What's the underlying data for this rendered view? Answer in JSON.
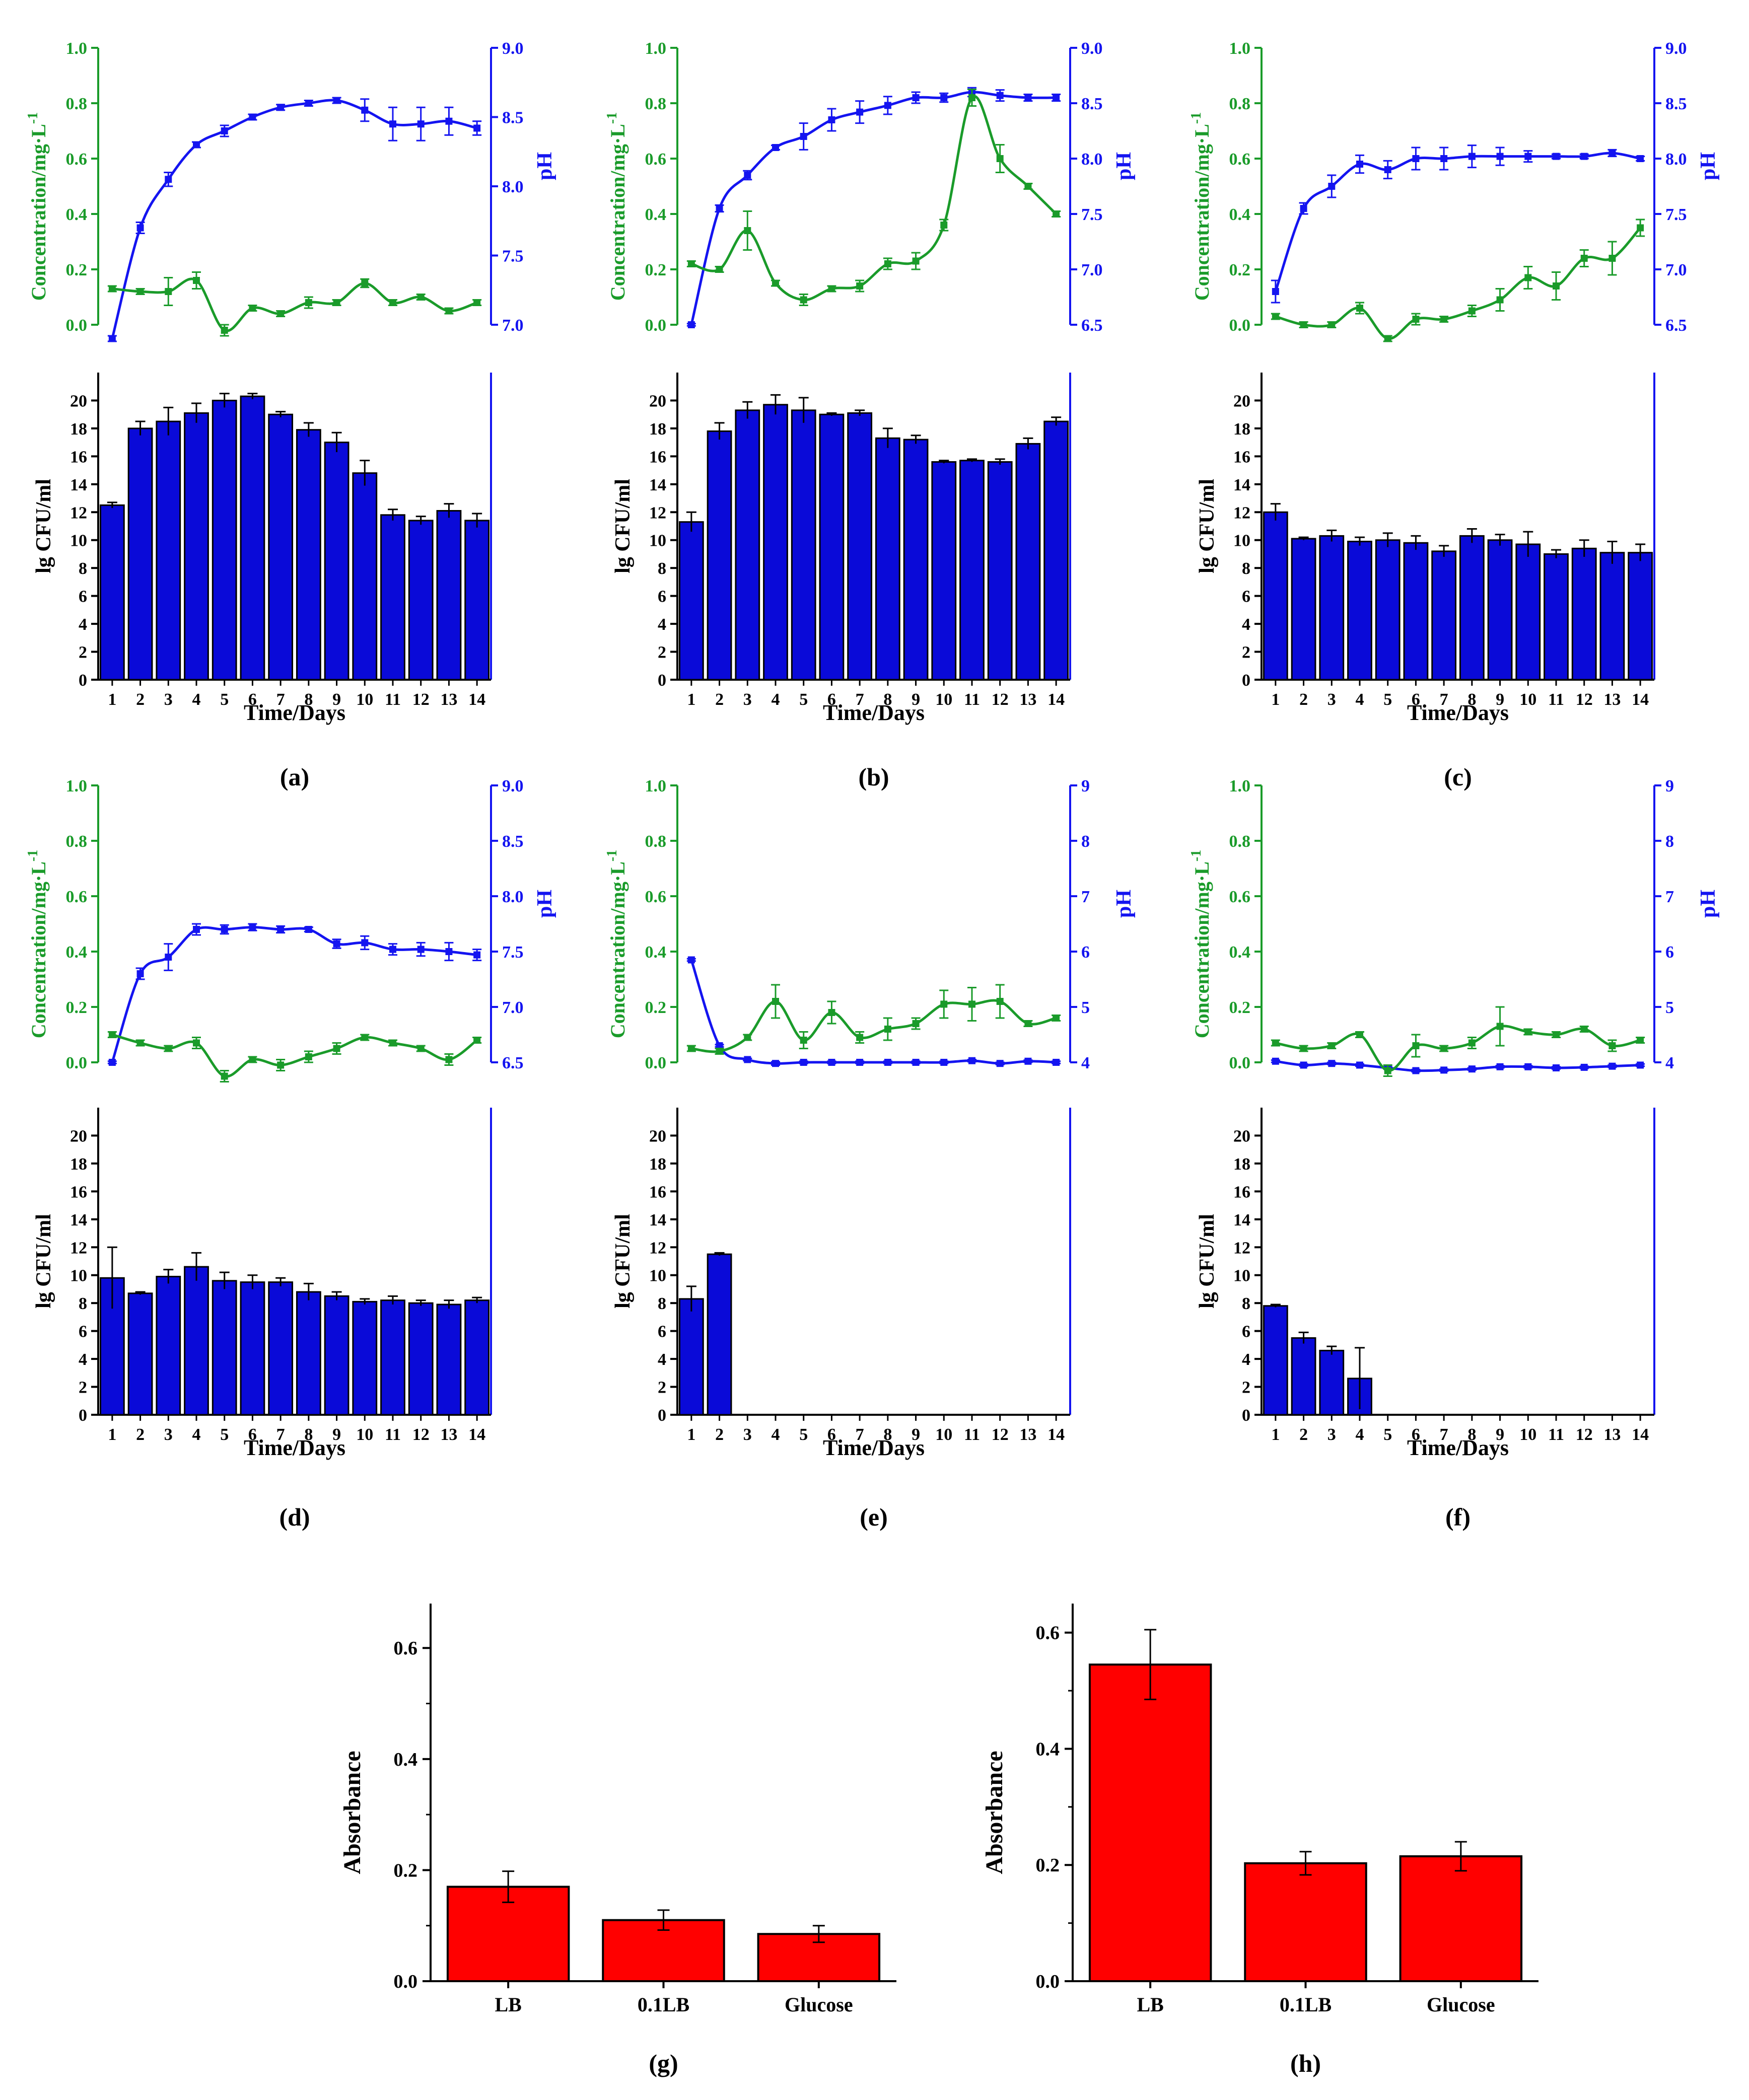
{
  "colors": {
    "concentration": "#1a9b2a",
    "ph": "#1414f0",
    "bar_blue": "#0a0ad8",
    "bar_red": "#ff0000",
    "axis": "#000000"
  },
  "chart_data": [
    {
      "id": "a",
      "type": "combo",
      "label": "(a)",
      "days": [
        1,
        2,
        3,
        4,
        5,
        6,
        7,
        8,
        9,
        10,
        11,
        12,
        13,
        14
      ],
      "concentration": {
        "ylabel": "Concentration/mg·L",
        "ylabel_sup": "-1",
        "ylim": [
          0,
          1
        ],
        "ticks": [
          "0.0",
          "0.2",
          "0.4",
          "0.6",
          "0.8",
          "1.0"
        ],
        "values": [
          0.13,
          0.12,
          0.12,
          0.16,
          -0.02,
          0.06,
          0.04,
          0.08,
          0.08,
          0.15,
          0.08,
          0.1,
          0.05,
          0.08
        ],
        "errors": [
          0.01,
          0.01,
          0.05,
          0.03,
          0.02,
          0.01,
          0.01,
          0.02,
          0.01,
          0.015,
          0.01,
          0.01,
          0.01,
          0.01
        ]
      },
      "ph": {
        "ylabel": "pH",
        "ylim": [
          7.0,
          9.0
        ],
        "ticks": [
          "7.0",
          "7.5",
          "8.0",
          "8.5",
          "9.0"
        ],
        "values": [
          6.9,
          7.7,
          8.05,
          8.3,
          8.4,
          8.5,
          8.57,
          8.6,
          8.62,
          8.55,
          8.45,
          8.45,
          8.47,
          8.42
        ],
        "errors": [
          0.02,
          0.04,
          0.05,
          0.02,
          0.04,
          0.02,
          0.02,
          0.02,
          0.02,
          0.08,
          0.12,
          0.12,
          0.1,
          0.05
        ]
      },
      "cfu": {
        "ylabel": "lg CFU/ml",
        "xlabel": "Time/Days",
        "ylim": [
          0,
          22
        ],
        "ticks": [
          "0",
          "2",
          "4",
          "6",
          "8",
          "10",
          "12",
          "14",
          "16",
          "18",
          "20"
        ],
        "values": [
          12.5,
          18,
          18.5,
          19.1,
          20.0,
          20.3,
          19.0,
          17.9,
          17.0,
          14.8,
          11.8,
          11.4,
          12.1,
          11.4
        ],
        "errors": [
          0.2,
          0.5,
          1.0,
          0.7,
          0.5,
          0.2,
          0.2,
          0.5,
          0.7,
          0.9,
          0.4,
          0.3,
          0.5,
          0.5
        ]
      }
    },
    {
      "id": "b",
      "type": "combo",
      "label": "(b)",
      "days": [
        1,
        2,
        3,
        4,
        5,
        6,
        7,
        8,
        9,
        10,
        11,
        12,
        13,
        14
      ],
      "concentration": {
        "ylabel": "Concentration/mg·L",
        "ylabel_sup": "-1",
        "ylim": [
          0,
          1
        ],
        "ticks": [
          "0.0",
          "0.2",
          "0.4",
          "0.6",
          "0.8",
          "1.0"
        ],
        "values": [
          0.22,
          0.2,
          0.34,
          0.15,
          0.09,
          0.13,
          0.14,
          0.22,
          0.23,
          0.36,
          0.82,
          0.6,
          0.5,
          0.4
        ],
        "errors": [
          0.01,
          0.01,
          0.07,
          0.01,
          0.02,
          0.01,
          0.02,
          0.02,
          0.03,
          0.02,
          0.03,
          0.05,
          0.01,
          0.01
        ]
      },
      "ph": {
        "ylabel": "pH",
        "ylim": [
          6.5,
          9.0
        ],
        "ticks": [
          "6.5",
          "7.0",
          "7.5",
          "8.0",
          "8.5",
          "9.0"
        ],
        "values": [
          6.5,
          7.55,
          7.85,
          8.1,
          8.2,
          8.35,
          8.42,
          8.48,
          8.55,
          8.55,
          8.6,
          8.57,
          8.55,
          8.55
        ],
        "errors": [
          0.01,
          0.03,
          0.04,
          0.02,
          0.12,
          0.1,
          0.1,
          0.08,
          0.05,
          0.04,
          0.04,
          0.05,
          0.03,
          0.03
        ]
      },
      "cfu": {
        "ylabel": "lg CFU/ml",
        "xlabel": "Time/Days",
        "ylim": [
          0,
          22
        ],
        "ticks": [
          "0",
          "2",
          "4",
          "6",
          "8",
          "10",
          "12",
          "14",
          "16",
          "18",
          "20"
        ],
        "values": [
          11.3,
          17.8,
          19.3,
          19.7,
          19.3,
          19.0,
          19.1,
          17.3,
          17.2,
          15.6,
          15.7,
          15.6,
          16.9,
          18.5
        ],
        "errors": [
          0.7,
          0.6,
          0.6,
          0.7,
          0.9,
          0.1,
          0.2,
          0.7,
          0.3,
          0.1,
          0.1,
          0.2,
          0.4,
          0.3
        ]
      }
    },
    {
      "id": "c",
      "type": "combo",
      "label": "(c)",
      "days": [
        1,
        2,
        3,
        4,
        5,
        6,
        7,
        8,
        9,
        10,
        11,
        12,
        13,
        14
      ],
      "concentration": {
        "ylabel": "Concentration/mg·L",
        "ylabel_sup": "-1",
        "ylim": [
          0,
          1
        ],
        "ticks": [
          "0.0",
          "0.2",
          "0.4",
          "0.6",
          "0.8",
          "1.0"
        ],
        "values": [
          0.03,
          0.0,
          0.0,
          0.06,
          -0.05,
          0.02,
          0.02,
          0.05,
          0.09,
          0.17,
          0.14,
          0.24,
          0.24,
          0.35
        ],
        "errors": [
          0.01,
          0.01,
          0.01,
          0.02,
          0.01,
          0.02,
          0.01,
          0.02,
          0.04,
          0.04,
          0.05,
          0.03,
          0.06,
          0.03
        ]
      },
      "ph": {
        "ylabel": "pH",
        "ylim": [
          6.5,
          9.0
        ],
        "ticks": [
          "6.5",
          "7.0",
          "7.5",
          "8.0",
          "8.5",
          "9.0"
        ],
        "values": [
          6.8,
          7.55,
          7.75,
          7.95,
          7.9,
          8.0,
          8.0,
          8.02,
          8.02,
          8.02,
          8.02,
          8.02,
          8.05,
          8.0
        ],
        "errors": [
          0.1,
          0.05,
          0.1,
          0.08,
          0.08,
          0.1,
          0.1,
          0.1,
          0.08,
          0.05,
          0.02,
          0.02,
          0.03,
          0.02
        ]
      },
      "cfu": {
        "ylabel": "lg CFU/ml",
        "xlabel": "Time/Days",
        "ylim": [
          0,
          22
        ],
        "ticks": [
          "0",
          "2",
          "4",
          "6",
          "8",
          "10",
          "12",
          "14",
          "16",
          "18",
          "20"
        ],
        "values": [
          12.0,
          10.1,
          10.3,
          9.9,
          10.0,
          9.8,
          9.2,
          10.3,
          10.0,
          9.7,
          9.0,
          9.4,
          9.1,
          9.1
        ],
        "errors": [
          0.6,
          0.1,
          0.4,
          0.3,
          0.5,
          0.5,
          0.4,
          0.5,
          0.4,
          0.9,
          0.3,
          0.6,
          0.8,
          0.6
        ]
      }
    },
    {
      "id": "d",
      "type": "combo",
      "label": "(d)",
      "days": [
        1,
        2,
        3,
        4,
        5,
        6,
        7,
        8,
        9,
        10,
        11,
        12,
        13,
        14
      ],
      "concentration": {
        "ylabel": "Concentration/mg·L",
        "ylabel_sup": "-1",
        "ylim": [
          0,
          1
        ],
        "ticks": [
          "0.0",
          "0.2",
          "0.4",
          "0.6",
          "0.8",
          "1.0"
        ],
        "values": [
          0.1,
          0.07,
          0.05,
          0.07,
          -0.05,
          0.01,
          -0.01,
          0.02,
          0.05,
          0.09,
          0.07,
          0.05,
          0.01,
          0.08
        ],
        "errors": [
          0.01,
          0.01,
          0.01,
          0.02,
          0.02,
          0.01,
          0.02,
          0.02,
          0.02,
          0.01,
          0.01,
          0.01,
          0.02,
          0.01
        ]
      },
      "ph": {
        "ylabel": "pH",
        "ylim": [
          6.5,
          9.0
        ],
        "ticks": [
          "6.5",
          "7.0",
          "7.5",
          "8.0",
          "8.5",
          "9.0"
        ],
        "values": [
          6.5,
          7.3,
          7.45,
          7.7,
          7.7,
          7.72,
          7.7,
          7.7,
          7.57,
          7.58,
          7.52,
          7.52,
          7.5,
          7.47
        ],
        "errors": [
          0.01,
          0.05,
          0.12,
          0.05,
          0.04,
          0.03,
          0.03,
          0.02,
          0.04,
          0.06,
          0.05,
          0.06,
          0.08,
          0.05
        ]
      },
      "cfu": {
        "ylabel": "lg CFU/ml",
        "xlabel": "Time/Days",
        "ylim": [
          0,
          22
        ],
        "ticks": [
          "0",
          "2",
          "4",
          "6",
          "8",
          "10",
          "12",
          "14",
          "16",
          "18",
          "20"
        ],
        "values": [
          9.8,
          8.7,
          9.9,
          10.6,
          9.6,
          9.5,
          9.5,
          8.8,
          8.5,
          8.1,
          8.2,
          8.0,
          7.9,
          8.2
        ],
        "errors": [
          2.2,
          0.1,
          0.5,
          1.0,
          0.6,
          0.5,
          0.3,
          0.6,
          0.3,
          0.2,
          0.3,
          0.2,
          0.3,
          0.2
        ]
      }
    },
    {
      "id": "e",
      "type": "combo",
      "label": "(e)",
      "days": [
        1,
        2,
        3,
        4,
        5,
        6,
        7,
        8,
        9,
        10,
        11,
        12,
        13,
        14
      ],
      "concentration": {
        "ylabel": "Concentration/mg·L",
        "ylabel_sup": "-1",
        "ylim": [
          0,
          1
        ],
        "ticks": [
          "0.0",
          "0.2",
          "0.4",
          "0.6",
          "0.8",
          "1.0"
        ],
        "values": [
          0.05,
          0.04,
          0.09,
          0.22,
          0.08,
          0.18,
          0.09,
          0.12,
          0.14,
          0.21,
          0.21,
          0.22,
          0.14,
          0.16
        ],
        "errors": [
          0.01,
          0.01,
          0.01,
          0.06,
          0.03,
          0.04,
          0.02,
          0.04,
          0.02,
          0.05,
          0.06,
          0.06,
          0.01,
          0.01
        ]
      },
      "ph": {
        "ylabel": "pH",
        "ylim": [
          4,
          9
        ],
        "ticks": [
          "4",
          "5",
          "6",
          "7",
          "8",
          "9"
        ],
        "values": [
          5.85,
          4.3,
          4.05,
          3.98,
          4.0,
          4.0,
          4.0,
          4.0,
          4.0,
          4.0,
          4.03,
          3.98,
          4.02,
          4.0
        ],
        "errors": [
          0.02,
          0.02,
          0.02,
          0.03,
          0.02,
          0.02,
          0.02,
          0.02,
          0.02,
          0.02,
          0.02,
          0.02,
          0.02,
          0.02
        ]
      },
      "cfu": {
        "ylabel": "lg CFU/ml",
        "xlabel": "Time/Days",
        "ylim": [
          0,
          22
        ],
        "ticks": [
          "0",
          "2",
          "4",
          "6",
          "8",
          "10",
          "12",
          "14",
          "16",
          "18",
          "20"
        ],
        "values": [
          8.3,
          11.5,
          0,
          0,
          0,
          0,
          0,
          0,
          0,
          0,
          0,
          0,
          0,
          0
        ],
        "errors": [
          0.9,
          0.1,
          0,
          0,
          0,
          0,
          0,
          0,
          0,
          0,
          0,
          0,
          0,
          0
        ]
      }
    },
    {
      "id": "f",
      "type": "combo",
      "label": "(f)",
      "days": [
        1,
        2,
        3,
        4,
        5,
        6,
        7,
        8,
        9,
        10,
        11,
        12,
        13,
        14
      ],
      "concentration": {
        "ylabel": "Concentration/mg·L",
        "ylabel_sup": "-1",
        "ylim": [
          0,
          1
        ],
        "ticks": [
          "0.0",
          "0.2",
          "0.4",
          "0.6",
          "0.8",
          "1.0"
        ],
        "values": [
          0.07,
          0.05,
          0.06,
          0.1,
          -0.03,
          0.06,
          0.05,
          0.07,
          0.13,
          0.11,
          0.1,
          0.12,
          0.06,
          0.08
        ],
        "errors": [
          0.01,
          0.01,
          0.01,
          0.01,
          0.02,
          0.04,
          0.01,
          0.02,
          0.07,
          0.01,
          0.01,
          0.01,
          0.02,
          0.01
        ]
      },
      "ph": {
        "ylabel": "pH",
        "ylim": [
          4,
          9
        ],
        "ticks": [
          "4",
          "5",
          "6",
          "7",
          "8",
          "9"
        ],
        "values": [
          4.02,
          3.95,
          3.98,
          3.95,
          3.9,
          3.85,
          3.86,
          3.88,
          3.92,
          3.92,
          3.9,
          3.91,
          3.93,
          3.95
        ],
        "errors": [
          0.02,
          0.02,
          0.02,
          0.02,
          0.02,
          0.02,
          0.02,
          0.02,
          0.02,
          0.02,
          0.02,
          0.02,
          0.02,
          0.02
        ]
      },
      "cfu": {
        "ylabel": "lg CFU/ml",
        "xlabel": "Time/Days",
        "ylim": [
          0,
          22
        ],
        "ticks": [
          "0",
          "2",
          "4",
          "6",
          "8",
          "10",
          "12",
          "14",
          "16",
          "18",
          "20"
        ],
        "values": [
          7.8,
          5.5,
          4.6,
          2.6,
          0,
          0,
          0,
          0,
          0,
          0,
          0,
          0,
          0,
          0
        ],
        "errors": [
          0.1,
          0.4,
          0.3,
          2.2,
          0,
          0,
          0,
          0,
          0,
          0,
          0,
          0,
          0,
          0
        ]
      }
    },
    {
      "id": "g",
      "type": "bar",
      "label": "(g)",
      "categories": [
        "LB",
        "0.1LB",
        "Glucose"
      ],
      "values": [
        0.17,
        0.11,
        0.085
      ],
      "errors": [
        0.028,
        0.018,
        0.015
      ],
      "ylabel": "Absorbance",
      "ylim": [
        0,
        0.68
      ],
      "ticks": [
        "0.0",
        "0.2",
        "0.4",
        "0.6"
      ]
    },
    {
      "id": "h",
      "type": "bar",
      "label": "(h)",
      "categories": [
        "LB",
        "0.1LB",
        "Glucose"
      ],
      "values": [
        0.545,
        0.203,
        0.215
      ],
      "errors": [
        0.06,
        0.02,
        0.025
      ],
      "ylabel": "Absorbance",
      "ylim": [
        0,
        0.65
      ],
      "ticks": [
        "0.0",
        "0.2",
        "0.4",
        "0.6"
      ]
    }
  ]
}
